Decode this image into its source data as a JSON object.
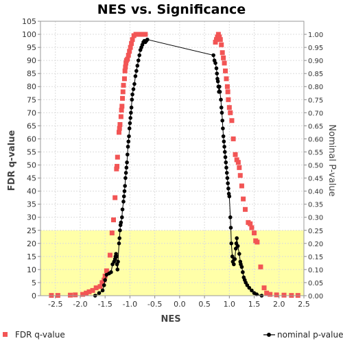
{
  "chart_data": {
    "type": "scatter",
    "title": "NES vs. Significance",
    "xlabel": "NES",
    "ylabel_left": "FDR q-value",
    "ylabel_right": "Nominal P-value",
    "xlim": [
      -2.8,
      2.5
    ],
    "ylim_left": [
      0,
      105
    ],
    "ylim_right": [
      0,
      1.05
    ],
    "xticks": [
      "-2.5",
      "-2.0",
      "-1.5",
      "-1.0",
      "-0.5",
      "0.0",
      "0.5",
      "1.0",
      "1.5",
      "2.0",
      "2.5"
    ],
    "yticks_left": [
      "0",
      "5",
      "10",
      "15",
      "20",
      "25",
      "30",
      "35",
      "40",
      "45",
      "50",
      "55",
      "60",
      "65",
      "70",
      "75",
      "80",
      "85",
      "90",
      "95",
      "100",
      "105"
    ],
    "yticks_right": [
      "0.00",
      "0.05",
      "0.10",
      "0.15",
      "0.20",
      "0.25",
      "0.30",
      "0.35",
      "0.40",
      "0.45",
      "0.50",
      "0.55",
      "0.60",
      "0.65",
      "0.70",
      "0.75",
      "0.80",
      "0.85",
      "0.90",
      "0.95",
      "1.00"
    ],
    "highlight_band_fdr": [
      0,
      25
    ],
    "grid": true,
    "legend_position": "bottom",
    "series": [
      {
        "name": "FDR q-value",
        "color": "#f25555",
        "marker": "square",
        "axis": "left",
        "points": [
          [
            -2.58,
            0.1
          ],
          [
            -2.45,
            0.1
          ],
          [
            -2.2,
            0.2
          ],
          [
            -2.1,
            0.3
          ],
          [
            -1.95,
            0.5
          ],
          [
            -1.88,
            1.0
          ],
          [
            -1.82,
            1.5
          ],
          [
            -1.75,
            2.0
          ],
          [
            -1.68,
            3.0
          ],
          [
            -1.6,
            3.5
          ],
          [
            -1.56,
            5.0
          ],
          [
            -1.52,
            6.0
          ],
          [
            -1.5,
            7.5
          ],
          [
            -1.47,
            9.5
          ],
          [
            -1.4,
            15.5
          ],
          [
            -1.36,
            24.0
          ],
          [
            -1.33,
            29.0
          ],
          [
            -1.3,
            37.5
          ],
          [
            -1.27,
            48.5
          ],
          [
            -1.26,
            49.5
          ],
          [
            -1.25,
            53.0
          ],
          [
            -1.22,
            62.5
          ],
          [
            -1.21,
            64.0
          ],
          [
            -1.2,
            65.5
          ],
          [
            -1.18,
            68.5
          ],
          [
            -1.17,
            71.0
          ],
          [
            -1.16,
            72.5
          ],
          [
            -1.15,
            75.5
          ],
          [
            -1.14,
            78.0
          ],
          [
            -1.13,
            80.5
          ],
          [
            -1.11,
            83.0
          ],
          [
            -1.1,
            86.0
          ],
          [
            -1.09,
            87.5
          ],
          [
            -1.08,
            89.0
          ],
          [
            -1.07,
            90.0
          ],
          [
            -1.05,
            90.5
          ],
          [
            -1.03,
            92.0
          ],
          [
            -1.01,
            93.5
          ],
          [
            -0.99,
            95.0
          ],
          [
            -0.97,
            96.5
          ],
          [
            -0.95,
            98.0
          ],
          [
            -0.92,
            99.5
          ],
          [
            -0.88,
            100.0
          ],
          [
            -0.84,
            100.0
          ],
          [
            -0.8,
            100.0
          ],
          [
            -0.76,
            100.0
          ],
          [
            -0.72,
            100.0
          ],
          [
            -0.69,
            100.0
          ],
          [
            0.72,
            97.0
          ],
          [
            0.74,
            98.0
          ],
          [
            0.76,
            99.0
          ],
          [
            0.78,
            100.0
          ],
          [
            0.8,
            99.0
          ],
          [
            0.82,
            98.0
          ],
          [
            0.84,
            96.0
          ],
          [
            0.86,
            93.0
          ],
          [
            0.88,
            91.0
          ],
          [
            0.9,
            89.0
          ],
          [
            0.92,
            86.0
          ],
          [
            0.94,
            83.0
          ],
          [
            0.96,
            80.0
          ],
          [
            0.97,
            78.0
          ],
          [
            0.98,
            75.0
          ],
          [
            1.0,
            72.0
          ],
          [
            1.02,
            70.0
          ],
          [
            1.05,
            67.0
          ],
          [
            1.08,
            60.0
          ],
          [
            1.12,
            54.0
          ],
          [
            1.15,
            52.0
          ],
          [
            1.18,
            51.0
          ],
          [
            1.2,
            49.0
          ],
          [
            1.22,
            46.0
          ],
          [
            1.25,
            42.0
          ],
          [
            1.28,
            37.0
          ],
          [
            1.32,
            33.0
          ],
          [
            1.38,
            28.0
          ],
          [
            1.42,
            27.5
          ],
          [
            1.45,
            26.0
          ],
          [
            1.5,
            24.0
          ],
          [
            1.53,
            21.0
          ],
          [
            1.56,
            20.5
          ],
          [
            1.63,
            11.0
          ],
          [
            1.7,
            3.0
          ],
          [
            1.75,
            1.0
          ],
          [
            1.82,
            0.5
          ],
          [
            1.95,
            0.3
          ],
          [
            2.1,
            0.2
          ],
          [
            2.25,
            0.1
          ],
          [
            2.38,
            0.1
          ]
        ]
      },
      {
        "name": "nominal p-value",
        "color": "#000000",
        "marker": "circle",
        "axis": "right",
        "points": [
          [
            -1.7,
            0.0
          ],
          [
            -1.62,
            0.01
          ],
          [
            -1.55,
            0.02
          ],
          [
            -1.52,
            0.04
          ],
          [
            -1.5,
            0.06
          ],
          [
            -1.47,
            0.08
          ],
          [
            -1.42,
            0.085
          ],
          [
            -1.38,
            0.09
          ],
          [
            -1.35,
            0.12
          ],
          [
            -1.32,
            0.13
          ],
          [
            -1.3,
            0.14
          ],
          [
            -1.29,
            0.15
          ],
          [
            -1.28,
            0.16
          ],
          [
            -1.27,
            0.15
          ],
          [
            -1.26,
            0.12
          ],
          [
            -1.25,
            0.1
          ],
          [
            -1.24,
            0.13
          ],
          [
            -1.22,
            0.2
          ],
          [
            -1.21,
            0.22
          ],
          [
            -1.2,
            0.25
          ],
          [
            -1.19,
            0.27
          ],
          [
            -1.18,
            0.28
          ],
          [
            -1.16,
            0.3
          ],
          [
            -1.15,
            0.33
          ],
          [
            -1.13,
            0.36
          ],
          [
            -1.12,
            0.38
          ],
          [
            -1.11,
            0.4
          ],
          [
            -1.1,
            0.42
          ],
          [
            -1.09,
            0.45
          ],
          [
            -1.08,
            0.47
          ],
          [
            -1.07,
            0.49
          ],
          [
            -1.06,
            0.51
          ],
          [
            -1.05,
            0.54
          ],
          [
            -1.04,
            0.57
          ],
          [
            -1.03,
            0.59
          ],
          [
            -1.02,
            0.61
          ],
          [
            -1.01,
            0.64
          ],
          [
            -1.0,
            0.66
          ],
          [
            -0.99,
            0.68
          ],
          [
            -0.98,
            0.7
          ],
          [
            -0.97,
            0.72
          ],
          [
            -0.96,
            0.75
          ],
          [
            -0.95,
            0.77
          ],
          [
            -0.93,
            0.79
          ],
          [
            -0.91,
            0.81
          ],
          [
            -0.89,
            0.84
          ],
          [
            -0.87,
            0.86
          ],
          [
            -0.85,
            0.88
          ],
          [
            -0.83,
            0.9
          ],
          [
            -0.81,
            0.92
          ],
          [
            -0.79,
            0.94
          ],
          [
            -0.77,
            0.95
          ],
          [
            -0.75,
            0.96
          ],
          [
            -0.73,
            0.97
          ],
          [
            -0.71,
            0.975
          ],
          [
            -0.69,
            0.97
          ],
          [
            -0.67,
            0.975
          ],
          [
            -0.65,
            0.98
          ],
          [
            0.68,
            0.92
          ],
          [
            0.7,
            0.9
          ],
          [
            0.72,
            0.89
          ],
          [
            0.74,
            0.87
          ],
          [
            0.75,
            0.85
          ],
          [
            0.76,
            0.83
          ],
          [
            0.77,
            0.82
          ],
          [
            0.78,
            0.8
          ],
          [
            0.79,
            0.78
          ],
          [
            0.8,
            0.8
          ],
          [
            0.81,
            0.78
          ],
          [
            0.83,
            0.75
          ],
          [
            0.84,
            0.72
          ],
          [
            0.85,
            0.7
          ],
          [
            0.86,
            0.67
          ],
          [
            0.87,
            0.64
          ],
          [
            0.88,
            0.61
          ],
          [
            0.89,
            0.59
          ],
          [
            0.9,
            0.57
          ],
          [
            0.91,
            0.55
          ],
          [
            0.92,
            0.53
          ],
          [
            0.93,
            0.51
          ],
          [
            0.94,
            0.49
          ],
          [
            0.95,
            0.47
          ],
          [
            0.96,
            0.45
          ],
          [
            0.97,
            0.43
          ],
          [
            0.98,
            0.41
          ],
          [
            0.99,
            0.39
          ],
          [
            1.0,
            0.38
          ],
          [
            1.02,
            0.3
          ],
          [
            1.03,
            0.26
          ],
          [
            1.04,
            0.2
          ],
          [
            1.06,
            0.15
          ],
          [
            1.07,
            0.13
          ],
          [
            1.09,
            0.12
          ],
          [
            1.11,
            0.14
          ],
          [
            1.13,
            0.18
          ],
          [
            1.14,
            0.2
          ],
          [
            1.15,
            0.22
          ],
          [
            1.17,
            0.19
          ],
          [
            1.2,
            0.16
          ],
          [
            1.22,
            0.13
          ],
          [
            1.23,
            0.12
          ],
          [
            1.25,
            0.11
          ],
          [
            1.27,
            0.09
          ],
          [
            1.29,
            0.07
          ],
          [
            1.31,
            0.06
          ],
          [
            1.33,
            0.05
          ],
          [
            1.36,
            0.04
          ],
          [
            1.4,
            0.03
          ],
          [
            1.45,
            0.02
          ],
          [
            1.5,
            0.01
          ],
          [
            1.55,
            0.005
          ],
          [
            1.65,
            0.0
          ]
        ]
      }
    ]
  }
}
